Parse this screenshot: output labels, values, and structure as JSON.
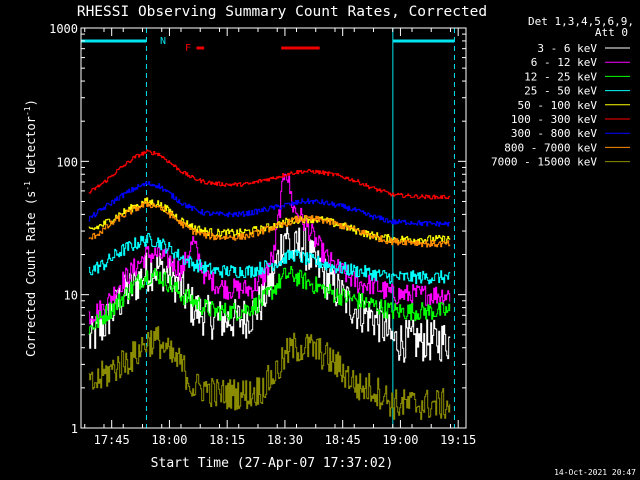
{
  "chart_data": {
    "type": "line",
    "title": "RHESSI Observing Summary Count Rates, Corrected",
    "xlabel": "Start Time (27-Apr-07 17:37:02)",
    "ylabel": "Corrected Count Rate (s⁻¹ detector⁻¹)",
    "ylabel_parts": {
      "main": "Corrected Count Rate (s",
      "sup1": "-1",
      "mid": " detector",
      "sup2": "-1",
      "end": ")"
    },
    "yscale": "log",
    "ylim": [
      1,
      1000
    ],
    "y_tick_labels": [
      "1",
      "10",
      "100",
      "1000"
    ],
    "x_tick_labels": [
      "17:45",
      "18:00",
      "18:15",
      "18:30",
      "18:45",
      "19:00",
      "19:15"
    ],
    "xlim_minutes": [
      0,
      100
    ],
    "x_tick_minutes": [
      7.97,
      22.97,
      37.97,
      52.97,
      67.97,
      82.97,
      97.97
    ],
    "detector_info": [
      "Det 1,3,4,5,6,9,",
      "Att 0"
    ],
    "timestamp": "14-Oct-2021 20:47",
    "flags": {
      "N_label": "N",
      "F_label": "F",
      "night_intervals_min": [
        [
          0,
          17
        ],
        [
          81,
          97
        ]
      ],
      "flare_intervals_min": [
        [
          30,
          32
        ],
        [
          52,
          62
        ]
      ],
      "night_color": "#00e5ee",
      "flare_color": "#ee0000"
    },
    "series": [
      {
        "name": "3 - 6 keV",
        "color": "#ffffff",
        "x_min": [
          2,
          6,
          10,
          14,
          17,
          20,
          23,
          26,
          29,
          32,
          35,
          38,
          41,
          44,
          47,
          50,
          52,
          53,
          55,
          57,
          60,
          63,
          66,
          69,
          72,
          75,
          78,
          81,
          85,
          90,
          96
        ],
        "values": [
          4.5,
          6,
          9,
          12,
          15,
          16,
          14,
          11,
          8,
          7,
          6.5,
          6.5,
          6.5,
          7,
          9,
          14,
          24,
          30,
          20,
          25,
          18,
          14,
          11,
          9,
          7.5,
          7,
          6,
          4.5,
          4.5,
          4.5,
          4.5
        ]
      },
      {
        "name": "6 - 12 keV",
        "color": "#ff00ff",
        "x_min": [
          2,
          6,
          10,
          14,
          17,
          20,
          23,
          26,
          29,
          32,
          35,
          38,
          41,
          44,
          47,
          50,
          52,
          53,
          55,
          57,
          60,
          63,
          66,
          69,
          72,
          75,
          78,
          81,
          85,
          90,
          96
        ],
        "values": [
          7,
          8,
          12,
          16,
          20,
          20,
          18,
          15,
          25,
          14,
          12,
          11,
          11,
          11,
          13,
          20,
          55,
          95,
          45,
          38,
          28,
          20,
          16,
          14,
          12,
          12,
          11,
          10,
          10,
          10,
          10
        ]
      },
      {
        "name": "12 - 25 keV",
        "color": "#00ff00",
        "x_min": [
          2,
          6,
          10,
          14,
          17,
          20,
          23,
          26,
          29,
          32,
          35,
          38,
          41,
          44,
          47,
          50,
          52,
          53,
          55,
          57,
          60,
          63,
          66,
          69,
          72,
          75,
          78,
          81,
          85,
          90,
          96
        ],
        "values": [
          5.5,
          7,
          9,
          12,
          14,
          14,
          12,
          10,
          9,
          8,
          7.5,
          7.5,
          7.5,
          8,
          9,
          11,
          13,
          14,
          14,
          13,
          12,
          11,
          10,
          9.5,
          9,
          8.5,
          8,
          7.5,
          7.5,
          7.5,
          7.5
        ]
      },
      {
        "name": "25 - 50 keV",
        "color": "#00ffff",
        "x_min": [
          2,
          6,
          10,
          14,
          17,
          20,
          23,
          26,
          29,
          32,
          35,
          38,
          41,
          44,
          47,
          50,
          52,
          53,
          55,
          57,
          60,
          63,
          66,
          69,
          72,
          75,
          78,
          81,
          85,
          90,
          96
        ],
        "values": [
          15,
          17,
          21,
          24,
          26,
          25,
          22,
          19,
          17,
          16,
          15,
          15,
          15,
          15,
          16,
          17,
          18,
          19,
          20,
          19,
          18,
          17,
          16,
          15.5,
          15,
          14.5,
          14,
          13.5,
          13.5,
          13.5,
          13.5
        ]
      },
      {
        "name": "50 - 100 keV",
        "color": "#ffff00",
        "x_min": [
          2,
          6,
          10,
          14,
          17,
          20,
          23,
          26,
          29,
          32,
          35,
          38,
          41,
          44,
          47,
          50,
          52,
          53,
          55,
          57,
          60,
          63,
          66,
          69,
          72,
          75,
          78,
          81,
          85,
          90,
          96
        ],
        "values": [
          30,
          34,
          40,
          46,
          50,
          48,
          42,
          36,
          32,
          30,
          29,
          29,
          29,
          30,
          31,
          33,
          34,
          35,
          36,
          37,
          37,
          36,
          34,
          32,
          30,
          28,
          27,
          26,
          26,
          26,
          26
        ]
      },
      {
        "name": "100 - 300 keV",
        "color": "#ff0000",
        "x_min": [
          2,
          6,
          10,
          14,
          17,
          20,
          23,
          26,
          29,
          32,
          35,
          38,
          41,
          44,
          47,
          50,
          52,
          53,
          55,
          57,
          60,
          63,
          66,
          69,
          72,
          75,
          78,
          81,
          85,
          90,
          96
        ],
        "values": [
          58,
          70,
          88,
          108,
          118,
          114,
          98,
          84,
          75,
          70,
          68,
          67,
          67,
          68,
          72,
          75,
          78,
          80,
          82,
          84,
          84,
          82,
          79,
          75,
          70,
          64,
          60,
          56,
          55,
          54,
          54
        ]
      },
      {
        "name": "300 - 800 keV",
        "color": "#0000ff",
        "x_min": [
          2,
          6,
          10,
          14,
          17,
          20,
          23,
          26,
          29,
          32,
          35,
          38,
          41,
          44,
          47,
          50,
          52,
          53,
          55,
          57,
          60,
          63,
          66,
          69,
          72,
          75,
          78,
          81,
          85,
          90,
          96
        ],
        "values": [
          37,
          45,
          54,
          63,
          68,
          66,
          57,
          49,
          44,
          41,
          40,
          40,
          40,
          41,
          43,
          45,
          46,
          47,
          48,
          50,
          50,
          49,
          47,
          45,
          42,
          39,
          37,
          35,
          35,
          34,
          34
        ]
      },
      {
        "name": "800 - 7000 keV",
        "color": "#ff8c00",
        "x_min": [
          2,
          6,
          10,
          14,
          17,
          20,
          23,
          26,
          29,
          32,
          35,
          38,
          41,
          44,
          47,
          50,
          52,
          53,
          55,
          57,
          60,
          63,
          66,
          69,
          72,
          75,
          78,
          81,
          85,
          90,
          96
        ],
        "values": [
          26,
          31,
          38,
          44,
          48,
          46,
          40,
          34,
          30,
          28,
          27,
          27,
          27,
          28,
          30,
          32,
          33,
          34,
          36,
          37,
          37,
          36,
          34,
          32,
          30,
          28,
          26,
          25,
          25,
          24,
          24
        ]
      },
      {
        "name": "7000 - 15000 keV",
        "color": "#8b8b00",
        "x_min": [
          2,
          6,
          10,
          14,
          17,
          20,
          23,
          26,
          29,
          32,
          35,
          38,
          41,
          44,
          47,
          50,
          52,
          53,
          55,
          57,
          60,
          63,
          66,
          69,
          72,
          75,
          78,
          81,
          85,
          90,
          96
        ],
        "values": [
          2,
          2.5,
          3,
          3.5,
          4.5,
          4.5,
          3.5,
          3,
          2,
          2,
          1.8,
          1.8,
          1.8,
          1.8,
          2,
          2.5,
          3,
          3.5,
          4,
          4,
          4,
          3.5,
          3,
          2.5,
          2,
          2,
          1.8,
          1.5,
          1.5,
          1.5,
          1.5
        ]
      }
    ]
  }
}
